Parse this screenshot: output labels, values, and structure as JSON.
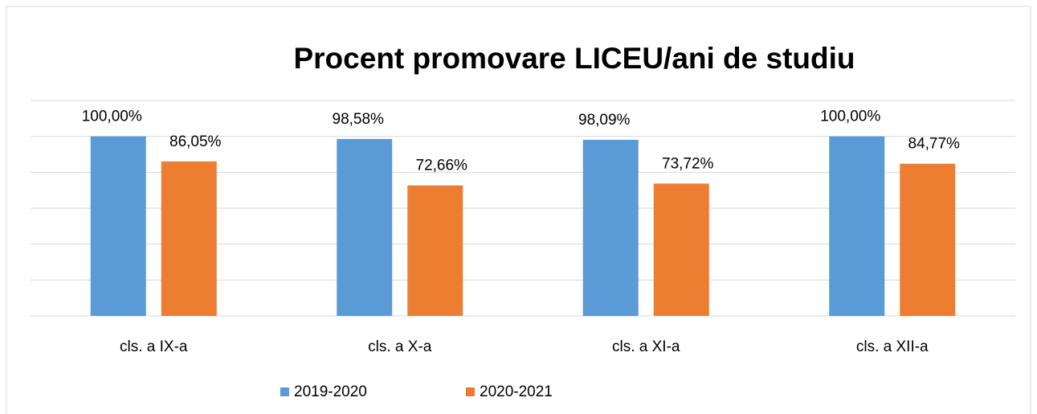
{
  "chart_data": {
    "type": "bar",
    "title": "Procent promovare LICEU/ani de studiu",
    "categories": [
      "cls. a IX-a",
      "cls. a X-a",
      "cls. a XI-a",
      "cls. a XII-a"
    ],
    "series": [
      {
        "name": "2019-2020",
        "color": "#5b9bd5",
        "values": [
          100,
          98.58,
          98.09,
          100
        ],
        "value_labels": [
          "100,00%",
          "98,58%",
          "98,09%",
          "100,00%"
        ]
      },
      {
        "name": "2020-2021",
        "color": "#ed7d31",
        "values": [
          86.05,
          72.66,
          73.72,
          84.77
        ],
        "value_labels": [
          "86,05%",
          "72,66%",
          "73,72%",
          "84,77%"
        ]
      }
    ],
    "ylim": [
      0,
      120
    ],
    "yticks": [
      0,
      20,
      40,
      60,
      80,
      100,
      120
    ],
    "grid": true,
    "legend": "bottom"
  }
}
